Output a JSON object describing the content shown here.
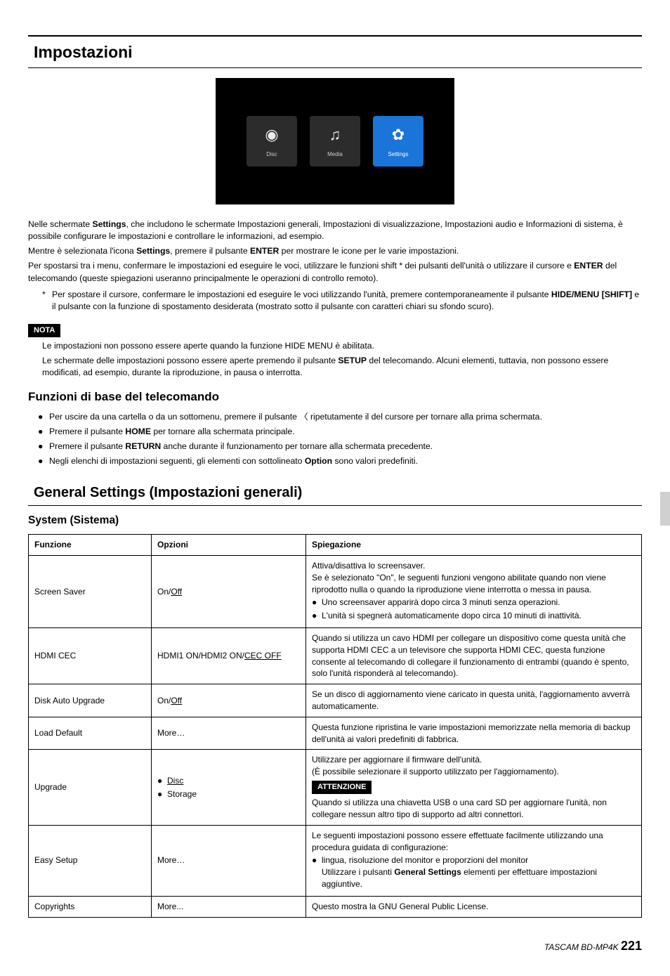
{
  "header": {
    "title": "Impostazioni"
  },
  "screenshot": {
    "tiles": [
      {
        "name": "disc-tile",
        "glyph": "◉",
        "label": "Disc",
        "active": false
      },
      {
        "name": "media-tile",
        "glyph": "♫",
        "label": "Media",
        "active": false
      },
      {
        "name": "settings-tile",
        "glyph": "✿",
        "label": "Settings",
        "active": true
      }
    ]
  },
  "intro": {
    "p1a": "Nelle schermate ",
    "p1b": "Settings",
    "p1c": ", che includono le schermate Impostazioni generali, Impostazioni di visualizzazione, Impostazioni audio e Informazioni di sistema, è possibile configurare le impostazioni e controllare le informazioni, ad esempio.",
    "p2a": "Mentre è selezionata l'icona ",
    "p2b": "Settings",
    "p2c": ", premere il pulsante ",
    "p2d": "ENTER",
    "p2e": " per mostrare le icone per le varie impostazioni.",
    "p3a": "Per spostarsi tra i menu, confermare le impostazioni ed eseguire le voci, utilizzare le funzioni shift * dei pulsanti dell'unità o utilizzare il cursore e ",
    "p3b": "ENTER",
    "p3c": " del telecomando (queste spiegazioni useranno principalmente le operazioni di controllo remoto).",
    "asterisk_a": "Per spostare il cursore, confermare le impostazioni ed eseguire le voci utilizzando l'unità, premere contemporaneamente il pulsante ",
    "asterisk_b": "HIDE/MENU [SHIFT]",
    "asterisk_c": " e il pulsante con la funzione di spostamento desiderata (mostrato sotto il pulsante con caratteri chiari su sfondo scuro)."
  },
  "nota": {
    "badge": "NOTA",
    "line1": "Le impostazioni non possono essere aperte quando la funzione HIDE MENU è abilitata.",
    "line2a": "Le schermate delle impostazioni possono essere aperte premendo il pulsante ",
    "line2b": "SETUP",
    "line2c": " del telecomando. Alcuni elementi, tuttavia, non possono essere modificati, ad esempio, durante la riproduzione, in pausa o interrotta."
  },
  "funzioni": {
    "title": "Funzioni di base del telecomando",
    "items": [
      {
        "pre": "Per uscire da una cartella o da un sottomenu, premere il pulsante ",
        "chevron": "〈",
        "post": "ripetutamente il del cursore per tornare alla prima schermata."
      },
      {
        "pre": "Premere il pulsante ",
        "bold": "HOME",
        "post": " per tornare alla schermata principale."
      },
      {
        "pre": "Premere il pulsante ",
        "bold": "RETURN",
        "post": " anche durante il funzionamento per tornare alla schermata precedente."
      },
      {
        "pre": "Negli elenchi di impostazioni seguenti, gli elementi con sottolineato ",
        "bold": "Option",
        "post": " sono valori predefiniti."
      }
    ]
  },
  "general": {
    "title": "General Settings (Impostazioni generali)",
    "system_title": "System (Sistema)",
    "headers": {
      "funzione": "Funzione",
      "opzioni": "Opzioni",
      "spiegazione": "Spiegazione"
    },
    "rows": {
      "screensaver": {
        "func": "Screen Saver",
        "opt_on": "On/",
        "opt_off": "Off",
        "exp_l1": "Attiva/disattiva lo screensaver.",
        "exp_l2": "Se è selezionato \"On\", le seguenti funzioni vengono abilitate quando non viene riprodotto nulla o quando la riproduzione viene interrotta o messa in pausa.",
        "exp_b1": "Uno screensaver apparirà dopo circa 3 minuti senza operazioni.",
        "exp_b2": "L'unità si spegnerà automaticamente dopo circa 10 minuti di inattività."
      },
      "hdmicec": {
        "func": "HDMI CEC",
        "opt_a": "HDMI1 ON/HDMI2 ON/",
        "opt_b": "CEC OFF",
        "exp": "Quando si utilizza un cavo HDMI per collegare un dispositivo come questa unità che supporta HDMI CEC a un televisore che supporta HDMI CEC, questa funzione consente al telecomando di collegare il funzionamento di entrambi (quando è spento, solo l'unità risponderà al telecomando)."
      },
      "diskauto": {
        "func": "Disk Auto Upgrade",
        "opt_on": "On/",
        "opt_off": "Off",
        "exp": "Se un disco di aggiornamento viene caricato in questa unità, l'aggiornamento avverrà automaticamente."
      },
      "loaddefault": {
        "func": "Load Default",
        "opt": "More…",
        "exp": "Questa funzione ripristina le varie impostazioni memorizzate nella memoria di backup dell'unità ai valori predefiniti di fabbrica."
      },
      "upgrade": {
        "func": "Upgrade",
        "opt_b1": "Disc",
        "opt_b2": "Storage",
        "exp_l1": "Utilizzare per aggiornare il firmware dell'unità.",
        "exp_l2": "(È possibile selezionare il supporto utilizzato per l'aggiornamento).",
        "attenzione": "ATTENZIONE",
        "exp_l3": "Quando si utilizza una chiavetta USB o una card SD per aggiornare l'unità, non collegare nessun altro tipo di supporto ad altri connettori."
      },
      "easysetup": {
        "func": "Easy Setup",
        "opt": "More…",
        "exp_l1": "Le seguenti impostazioni possono essere effettuate facilmente utilizzando una procedura guidata di configurazione:",
        "exp_b1a": "lingua, risoluzione del monitor e proporzioni del monitor",
        "exp_b1b": "Utilizzare i pulsanti ",
        "exp_b1c": "General Settings",
        "exp_b1d": " elementi per effettuare impostazioni aggiuntive."
      },
      "copyrights": {
        "func": "Copyrights",
        "opt": "More...",
        "exp": "Questo mostra la GNU General Public License."
      }
    }
  },
  "footer": {
    "model": "TASCAM BD-MP4K ",
    "page": "221"
  }
}
